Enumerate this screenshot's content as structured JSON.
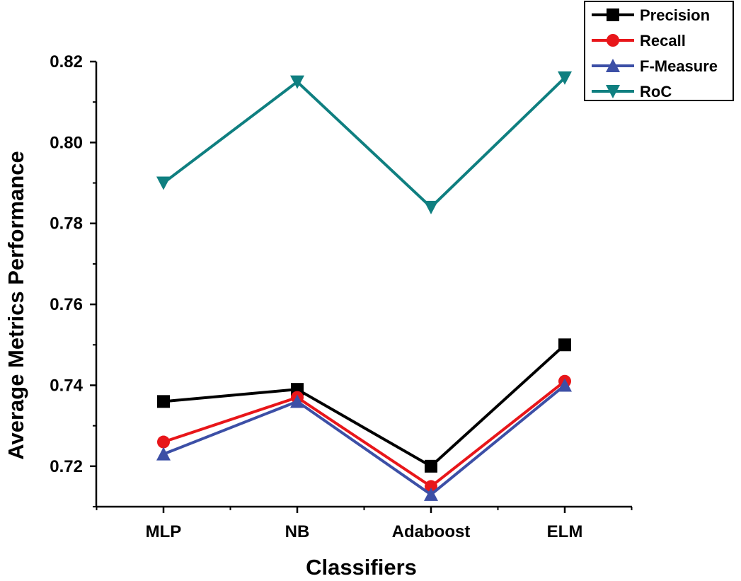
{
  "chart_data": {
    "type": "line",
    "title": "",
    "xlabel": "Classifiers",
    "ylabel": "Average Metrics Performance",
    "categories": [
      "MLP",
      "NB",
      "Adaboost",
      "ELM"
    ],
    "ylim": [
      0.71,
      0.82
    ],
    "yticks": [
      0.72,
      0.74,
      0.76,
      0.78,
      0.8,
      0.82
    ],
    "ytick_labels": [
      "0.72",
      "0.74",
      "0.76",
      "0.78",
      "0.80",
      "0.82"
    ],
    "grid": false,
    "legend_position": "top-right",
    "series": [
      {
        "name": "Precision",
        "values": [
          0.736,
          0.739,
          0.72,
          0.75
        ],
        "color": "#000000",
        "marker": "square"
      },
      {
        "name": "Recall",
        "values": [
          0.726,
          0.737,
          0.715,
          0.741
        ],
        "color": "#e8161a",
        "marker": "circle"
      },
      {
        "name": "F-Measure",
        "values": [
          0.723,
          0.736,
          0.713,
          0.74
        ],
        "color": "#3c4fa6",
        "marker": "triangle-up"
      },
      {
        "name": "RoC",
        "values": [
          0.79,
          0.815,
          0.784,
          0.816
        ],
        "color": "#0f7f80",
        "marker": "triangle-down"
      }
    ]
  }
}
